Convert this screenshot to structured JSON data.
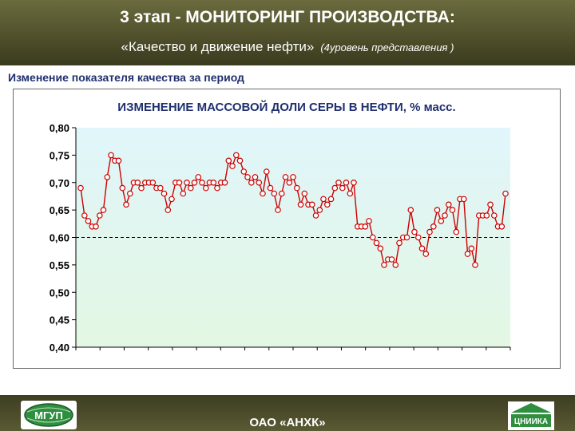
{
  "header": {
    "title": "3 этап - МОНИТОРИНГ ПРОИЗВОДСТВА:",
    "subtitle": "«Качество и движение нефти»",
    "subtitle_note": "(4уровень представления )"
  },
  "section_label": "Изменение показателя качества за период",
  "footer": {
    "company": "ОАО «АНХК»",
    "logo_left_text": "МГУП",
    "logo_right_text": "ЦНИИКА"
  },
  "colors": {
    "header_bg": "#545430",
    "plot_bg": "#e3f7e3",
    "plot_bg_top": "#e0f6fa",
    "series": "#cc0000",
    "marker_fill": "#ffffff",
    "title_text": "#1f2f6f"
  },
  "chart_data": {
    "type": "line",
    "title": "ИЗМЕНЕНИЕ МАССОВОЙ ДОЛИ СЕРЫ В НЕФТИ, % масс.",
    "xlabel": "",
    "ylabel": "",
    "ylim": [
      0.4,
      0.8
    ],
    "yticks": [
      "0,80",
      "0,75",
      "0,70",
      "0,65",
      "0,60",
      "0,55",
      "0,50",
      "0,45",
      "0,40"
    ],
    "reference_line": 0.6,
    "grid": false,
    "series": [
      {
        "values": [
          0.69,
          0.64,
          0.63,
          0.62,
          0.62,
          0.64,
          0.65,
          0.71,
          0.75,
          0.74,
          0.74,
          0.69,
          0.66,
          0.68,
          0.7,
          0.7,
          0.69,
          0.7,
          0.7,
          0.7,
          0.69,
          0.69,
          0.68,
          0.65,
          0.67,
          0.7,
          0.7,
          0.68,
          0.7,
          0.69,
          0.7,
          0.71,
          0.7,
          0.69,
          0.7,
          0.7,
          0.69,
          0.7,
          0.7,
          0.74,
          0.73,
          0.75,
          0.74,
          0.72,
          0.71,
          0.7,
          0.71,
          0.7,
          0.68,
          0.72,
          0.69,
          0.68,
          0.65,
          0.68,
          0.71,
          0.7,
          0.71,
          0.69,
          0.66,
          0.68,
          0.66,
          0.66,
          0.64,
          0.65,
          0.67,
          0.66,
          0.67,
          0.69,
          0.7,
          0.69,
          0.7,
          0.68,
          0.7,
          0.62,
          0.62,
          0.62,
          0.63,
          0.6,
          0.59,
          0.58,
          0.55,
          0.56,
          0.56,
          0.55,
          0.59,
          0.6,
          0.6,
          0.65,
          0.61,
          0.6,
          0.58,
          0.57,
          0.61,
          0.62,
          0.65,
          0.63,
          0.64,
          0.66,
          0.65,
          0.61,
          0.67,
          0.67,
          0.57,
          0.58,
          0.55,
          0.64,
          0.64,
          0.64,
          0.66,
          0.64,
          0.62,
          0.62,
          0.68
        ]
      }
    ]
  }
}
